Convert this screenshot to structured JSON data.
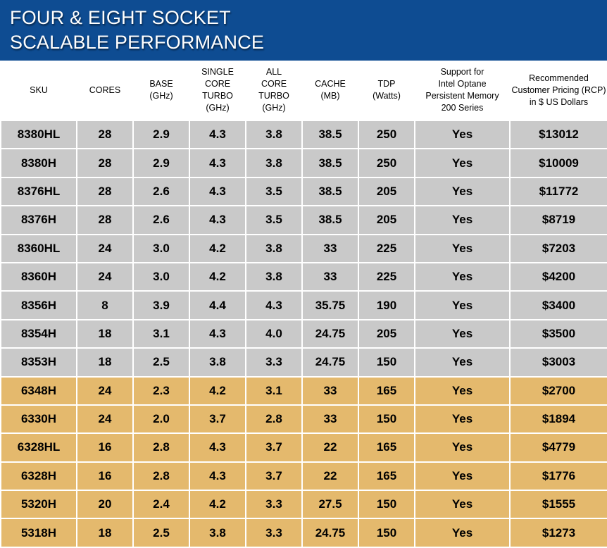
{
  "title": {
    "line1": "FOUR & EIGHT SOCKET",
    "line2": "SCALABLE PERFORMANCE"
  },
  "colors": {
    "banner": "#0e4c92",
    "row_grey": "#c9c9c9",
    "row_gold": "#e4b96d"
  },
  "headers": [
    [
      "SKU"
    ],
    [
      "CORES"
    ],
    [
      "BASE",
      "(GHz)"
    ],
    [
      "SINGLE",
      "CORE",
      "TURBO",
      "(GHz)"
    ],
    [
      "ALL",
      "CORE TURBO",
      "(GHz)"
    ],
    [
      "CACHE",
      "(MB)"
    ],
    [
      "TDP",
      "(Watts)"
    ],
    [
      "Support for",
      "Intel Optane",
      "Persistent Memory",
      "200 Series"
    ],
    [
      "Recommended",
      "Customer Pricing (RCP)",
      "in $ US Dollars"
    ]
  ],
  "rows": [
    {
      "group": "grey",
      "cells": [
        "8380HL",
        "28",
        "2.9",
        "4.3",
        "3.8",
        "38.5",
        "250",
        "Yes",
        "$13012"
      ]
    },
    {
      "group": "grey",
      "cells": [
        "8380H",
        "28",
        "2.9",
        "4.3",
        "3.8",
        "38.5",
        "250",
        "Yes",
        "$10009"
      ]
    },
    {
      "group": "grey",
      "cells": [
        "8376HL",
        "28",
        "2.6",
        "4.3",
        "3.5",
        "38.5",
        "205",
        "Yes",
        "$11772"
      ]
    },
    {
      "group": "grey",
      "cells": [
        "8376H",
        "28",
        "2.6",
        "4.3",
        "3.5",
        "38.5",
        "205",
        "Yes",
        "$8719"
      ]
    },
    {
      "group": "grey",
      "cells": [
        "8360HL",
        "24",
        "3.0",
        "4.2",
        "3.8",
        "33",
        "225",
        "Yes",
        "$7203"
      ]
    },
    {
      "group": "grey",
      "cells": [
        "8360H",
        "24",
        "3.0",
        "4.2",
        "3.8",
        "33",
        "225",
        "Yes",
        "$4200"
      ]
    },
    {
      "group": "grey",
      "cells": [
        "8356H",
        "8",
        "3.9",
        "4.4",
        "4.3",
        "35.75",
        "190",
        "Yes",
        "$3400"
      ]
    },
    {
      "group": "grey",
      "cells": [
        "8354H",
        "18",
        "3.1",
        "4.3",
        "4.0",
        "24.75",
        "205",
        "Yes",
        "$3500"
      ]
    },
    {
      "group": "grey",
      "cells": [
        "8353H",
        "18",
        "2.5",
        "3.8",
        "3.3",
        "24.75",
        "150",
        "Yes",
        "$3003"
      ]
    },
    {
      "group": "gold",
      "cells": [
        "6348H",
        "24",
        "2.3",
        "4.2",
        "3.1",
        "33",
        "165",
        "Yes",
        "$2700"
      ]
    },
    {
      "group": "gold",
      "cells": [
        "6330H",
        "24",
        "2.0",
        "3.7",
        "2.8",
        "33",
        "150",
        "Yes",
        "$1894"
      ]
    },
    {
      "group": "gold",
      "cells": [
        "6328HL",
        "16",
        "2.8",
        "4.3",
        "3.7",
        "22",
        "165",
        "Yes",
        "$4779"
      ]
    },
    {
      "group": "gold",
      "cells": [
        "6328H",
        "16",
        "2.8",
        "4.3",
        "3.7",
        "22",
        "165",
        "Yes",
        "$1776"
      ]
    },
    {
      "group": "gold",
      "cells": [
        "5320H",
        "20",
        "2.4",
        "4.2",
        "3.3",
        "27.5",
        "150",
        "Yes",
        "$1555"
      ]
    },
    {
      "group": "gold",
      "cells": [
        "5318H",
        "18",
        "2.5",
        "3.8",
        "3.3",
        "24.75",
        "150",
        "Yes",
        "$1273"
      ]
    }
  ]
}
